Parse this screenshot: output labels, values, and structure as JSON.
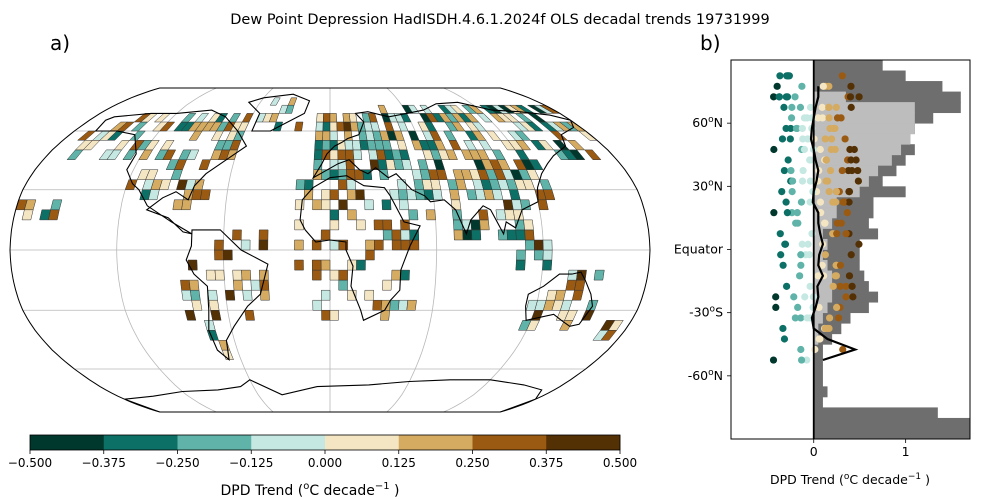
{
  "title": "Dew Point Depression HadISDH.4.6.1.2024f OLS decadal trends 19731999",
  "panel_a_label": "a)",
  "panel_b_label": "b)",
  "colorbar": {
    "label_main": "DPD Trend (",
    "label_o": "o",
    "label_c": "C decade",
    "label_exp": "−1",
    "label_end": " )",
    "ticks": [
      "−0.500",
      "−0.375",
      "−0.250",
      "−0.125",
      "0.000",
      "0.125",
      "0.250",
      "0.375",
      "0.500"
    ],
    "colors": [
      "#01382d",
      "#0d7066",
      "#5fb3a8",
      "#c5e8e2",
      "#f5e6c3",
      "#d5aa61",
      "#9b5a12",
      "#543005"
    ]
  },
  "zonal_axis": {
    "ytick_labels": [
      {
        "deg": "60",
        "sup": "o",
        "hem": "N",
        "lat": 60
      },
      {
        "deg": "30",
        "sup": "o",
        "hem": "N",
        "lat": 30
      },
      {
        "deg": "Equator",
        "sup": "",
        "hem": "",
        "lat": 0
      },
      {
        "deg": "-30",
        "sup": "o",
        "hem": "S",
        "lat": -30
      },
      {
        "deg": "-60",
        "sup": "o",
        "hem": "N",
        "lat": -60
      }
    ],
    "xtick_labels": [
      "0",
      "1"
    ],
    "xlabel_main": "DPD Trend (",
    "xlabel_o": "o",
    "xlabel_c": "C decade",
    "xlabel_exp": "−1",
    "xlabel_end": " )"
  },
  "chart_data": [
    {
      "type": "heatmap",
      "panel": "a",
      "description_units": "gridbox DPD trend, degC per decade",
      "vmin": -0.5,
      "vmax": 0.5,
      "levels": 8
    },
    {
      "type": "scatter",
      "panel": "b",
      "xlim": [
        -0.9,
        1.7
      ],
      "ylim": [
        -90,
        90
      ],
      "land_coverage_fraction": [
        {
          "lat": 87.5,
          "v": 0.75
        },
        {
          "lat": 82.5,
          "v": 1.0
        },
        {
          "lat": 77.5,
          "v": 1.4
        },
        {
          "lat": 72.5,
          "v": 1.6
        },
        {
          "lat": 67.5,
          "v": 1.6
        },
        {
          "lat": 62.5,
          "v": 1.3
        },
        {
          "lat": 57.5,
          "v": 1.1
        },
        {
          "lat": 52.5,
          "v": 1.05
        },
        {
          "lat": 47.5,
          "v": 1.1
        },
        {
          "lat": 42.5,
          "v": 1.0
        },
        {
          "lat": 37.5,
          "v": 0.9
        },
        {
          "lat": 32.5,
          "v": 0.75
        },
        {
          "lat": 27.5,
          "v": 1.0
        },
        {
          "lat": 22.5,
          "v": 0.65
        },
        {
          "lat": 17.5,
          "v": 0.65
        },
        {
          "lat": 12.5,
          "v": 0.6
        },
        {
          "lat": 7.5,
          "v": 0.7
        },
        {
          "lat": 2.5,
          "v": 0.5
        },
        {
          "lat": -2.5,
          "v": 0.5
        },
        {
          "lat": -7.5,
          "v": 0.5
        },
        {
          "lat": -12.5,
          "v": 0.55
        },
        {
          "lat": -17.5,
          "v": 0.6
        },
        {
          "lat": -22.5,
          "v": 0.7
        },
        {
          "lat": -27.5,
          "v": 0.6
        },
        {
          "lat": -32.5,
          "v": 0.4
        },
        {
          "lat": -37.5,
          "v": 0.3
        },
        {
          "lat": -42.5,
          "v": 0.2
        },
        {
          "lat": -47.5,
          "v": 0.1
        },
        {
          "lat": -52.5,
          "v": 0.1
        },
        {
          "lat": -57.5,
          "v": 0.1
        },
        {
          "lat": -62.5,
          "v": 0.1
        },
        {
          "lat": -67.5,
          "v": 0.15
        },
        {
          "lat": -72.5,
          "v": 0.1
        },
        {
          "lat": -77.5,
          "v": 1.35
        },
        {
          "lat": -82.5,
          "v": 1.7
        },
        {
          "lat": -87.5,
          "v": 1.7
        }
      ],
      "obs_coverage_fraction": [
        {
          "lat": 72.5,
          "v": 0.35
        },
        {
          "lat": 67.5,
          "v": 1.1
        },
        {
          "lat": 62.5,
          "v": 1.1
        },
        {
          "lat": 57.5,
          "v": 1.1
        },
        {
          "lat": 52.5,
          "v": 1.05
        },
        {
          "lat": 47.5,
          "v": 0.95
        },
        {
          "lat": 42.5,
          "v": 0.85
        },
        {
          "lat": 37.5,
          "v": 0.7
        },
        {
          "lat": 32.5,
          "v": 0.6
        },
        {
          "lat": 27.5,
          "v": 0.5
        },
        {
          "lat": 22.5,
          "v": 0.25
        },
        {
          "lat": 17.5,
          "v": 0.25
        },
        {
          "lat": 12.5,
          "v": 0.2
        },
        {
          "lat": 7.5,
          "v": 0.1
        },
        {
          "lat": 2.5,
          "v": 0.15
        },
        {
          "lat": -2.5,
          "v": 0.1
        },
        {
          "lat": -7.5,
          "v": 0.15
        },
        {
          "lat": -12.5,
          "v": 0.2
        },
        {
          "lat": -17.5,
          "v": 0.2
        },
        {
          "lat": -22.5,
          "v": 0.2
        },
        {
          "lat": -27.5,
          "v": 0.15
        },
        {
          "lat": -32.5,
          "v": 0.1
        },
        {
          "lat": -37.5,
          "v": 0.05
        },
        {
          "lat": -42.5,
          "v": 0.05
        }
      ],
      "zonal_mean_line": [
        [
          0.05,
          77.5
        ],
        [
          0.05,
          72.5
        ],
        [
          0.02,
          67.5
        ],
        [
          0.0,
          62.5
        ],
        [
          -0.02,
          57.5
        ],
        [
          -0.03,
          52.5
        ],
        [
          0.0,
          47.5
        ],
        [
          0.02,
          42.5
        ],
        [
          0.05,
          37.5
        ],
        [
          0.03,
          32.5
        ],
        [
          0.0,
          27.5
        ],
        [
          -0.01,
          22.5
        ],
        [
          0.05,
          17.5
        ],
        [
          0.05,
          12.5
        ],
        [
          0.07,
          7.5
        ],
        [
          0.1,
          2.5
        ],
        [
          0.06,
          -2.5
        ],
        [
          0.05,
          -7.5
        ],
        [
          0.1,
          -12.5
        ],
        [
          0.04,
          -17.5
        ],
        [
          0.05,
          -22.5
        ],
        [
          0.02,
          -27.5
        ],
        [
          -0.02,
          -32.5
        ],
        [
          0.0,
          -37.5
        ],
        [
          0.15,
          -42.5
        ],
        [
          0.45,
          -47.5
        ],
        [
          0.1,
          -52.5
        ]
      ]
    }
  ]
}
